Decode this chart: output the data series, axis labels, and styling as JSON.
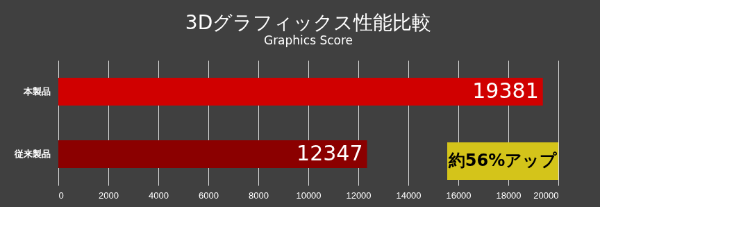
{
  "chart_data": {
    "type": "bar",
    "orientation": "horizontal",
    "title": "3Dグラフィックス性能比較",
    "subtitle": "Graphics Score",
    "categories": [
      "本製品",
      "従来製品"
    ],
    "values": [
      19381,
      12347
    ],
    "colors": [
      "#d00000",
      "#8b0000"
    ],
    "xlim": [
      0,
      20000
    ],
    "xticks": [
      0,
      2000,
      4000,
      6000,
      8000,
      10000,
      12000,
      14000,
      16000,
      18000,
      20000
    ],
    "grid": "x",
    "data_labels": true,
    "legend": false,
    "annotations": [
      "約56%アップ"
    ]
  }
}
